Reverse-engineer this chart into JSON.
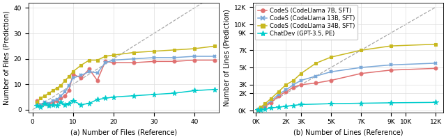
{
  "left": {
    "xlabel": "(a) Number of Files (Reference)",
    "ylabel": "Number of Files (Prediction)",
    "xlim": [
      -1,
      46
    ],
    "ylim": [
      -1,
      42
    ],
    "xticks": [
      0,
      10,
      20,
      30,
      40
    ],
    "yticks": [
      0,
      10,
      20,
      30,
      40
    ],
    "diag": [
      0,
      45
    ],
    "series": [
      {
        "key": "codes_7b",
        "x": [
          1,
          2,
          3,
          4,
          5,
          6,
          7,
          8,
          9,
          10,
          12,
          14,
          16,
          18,
          20,
          25,
          30,
          35,
          40,
          45
        ],
        "y": [
          3.5,
          2.0,
          2.5,
          2.0,
          3.0,
          3.5,
          4.5,
          5.5,
          7.5,
          14.0,
          12.5,
          16.0,
          11.5,
          19.0,
          18.5,
          18.5,
          19.0,
          19.0,
          19.5,
          19.5
        ],
        "color": "#e07070",
        "marker": "o"
      },
      {
        "key": "codes_13b",
        "x": [
          1,
          2,
          3,
          4,
          5,
          6,
          7,
          8,
          9,
          10,
          12,
          14,
          16,
          18,
          20,
          25,
          30,
          35,
          40,
          45
        ],
        "y": [
          2.5,
          2.0,
          3.0,
          2.5,
          3.5,
          4.0,
          5.5,
          7.0,
          9.5,
          12.5,
          13.5,
          15.0,
          14.5,
          18.5,
          19.5,
          20.0,
          20.5,
          20.5,
          21.0,
          21.0
        ],
        "color": "#7aa8d8",
        "marker": "x"
      },
      {
        "key": "codes_34b",
        "x": [
          1,
          2,
          3,
          4,
          5,
          6,
          7,
          8,
          9,
          10,
          12,
          14,
          16,
          18,
          20,
          25,
          30,
          35,
          40,
          45
        ],
        "y": [
          3.0,
          4.5,
          5.5,
          6.5,
          7.5,
          8.5,
          9.5,
          11.5,
          13.0,
          15.0,
          17.5,
          19.5,
          19.5,
          21.0,
          21.5,
          22.5,
          23.0,
          23.5,
          24.0,
          25.0
        ],
        "color": "#c8b820",
        "marker": "s"
      },
      {
        "key": "chatdev",
        "x": [
          1,
          2,
          3,
          4,
          5,
          6,
          7,
          8,
          9,
          10,
          12,
          14,
          16,
          18,
          20,
          25,
          30,
          35,
          40,
          45
        ],
        "y": [
          1.5,
          1.0,
          2.5,
          1.5,
          2.0,
          1.5,
          3.0,
          2.0,
          2.5,
          3.5,
          2.0,
          2.5,
          4.0,
          4.5,
          5.0,
          5.5,
          6.0,
          6.5,
          7.5,
          8.0
        ],
        "color": "#00cccc",
        "marker": "*"
      }
    ]
  },
  "right": {
    "xlabel": "(b) Number of Lines (Reference)",
    "ylabel": "Number of Lines (Prediction)",
    "xlim": [
      -200,
      12500
    ],
    "ylim": [
      -200,
      12500
    ],
    "xticks": [
      0,
      2000,
      3000,
      5000,
      7000,
      9000,
      10000,
      12000
    ],
    "xticklabels": [
      "0K",
      "2K",
      "3K",
      "5K",
      "7K",
      "9K",
      "10K",
      "12K"
    ],
    "yticks": [
      0,
      2000,
      3000,
      5000,
      7000,
      9000,
      10000,
      12000
    ],
    "yticklabels": [
      "0K",
      "2K",
      "3K",
      "5K",
      "7K",
      "9K",
      "10K",
      "12K"
    ],
    "diag": [
      0,
      12000
    ],
    "series": [
      {
        "key": "codes_7b",
        "x": [
          100,
          300,
          600,
          1000,
          1500,
          2000,
          2500,
          3000,
          4000,
          5000,
          7000,
          9000,
          12000
        ],
        "y": [
          80,
          250,
          500,
          900,
          1700,
          2200,
          2700,
          3000,
          3200,
          3500,
          4300,
          4700,
          4900
        ],
        "color": "#e07070",
        "marker": "o"
      },
      {
        "key": "codes_13b",
        "x": [
          100,
          300,
          600,
          1000,
          1500,
          2000,
          2500,
          3000,
          4000,
          5000,
          7000,
          9000,
          12000
        ],
        "y": [
          100,
          300,
          650,
          1100,
          1900,
          2400,
          3000,
          3500,
          4000,
          4500,
          5000,
          5300,
          5500
        ],
        "color": "#7aa8d8",
        "marker": "x"
      },
      {
        "key": "codes_34b",
        "x": [
          100,
          300,
          600,
          1000,
          1500,
          2000,
          2500,
          3000,
          4000,
          5000,
          7000,
          9000,
          12000
        ],
        "y": [
          120,
          380,
          800,
          1400,
          2200,
          3000,
          3500,
          4300,
          5500,
          6200,
          7000,
          7500,
          7700
        ],
        "color": "#c8b820",
        "marker": "s"
      },
      {
        "key": "chatdev",
        "x": [
          100,
          300,
          600,
          1000,
          1500,
          2000,
          2500,
          3000,
          5000,
          7000,
          9000,
          12000
        ],
        "y": [
          50,
          100,
          150,
          300,
          400,
          500,
          600,
          700,
          800,
          850,
          900,
          950
        ],
        "color": "#00cccc",
        "marker": "*"
      }
    ]
  },
  "legend": {
    "labels": [
      "CodeS (CodeLlama 7B, SFT)",
      "CodeS (CodeLlama 13B, SFT)",
      "CodeS (CodeLlama 34B, SFT)",
      "ChatDev (GPT-3.5, PE)"
    ],
    "colors": [
      "#e07070",
      "#7aa8d8",
      "#c8b820",
      "#00cccc"
    ],
    "markers": [
      "o",
      "x",
      "s",
      "*"
    ]
  },
  "grid_color": "#dddddd",
  "diag_color": "#aaaaaa"
}
